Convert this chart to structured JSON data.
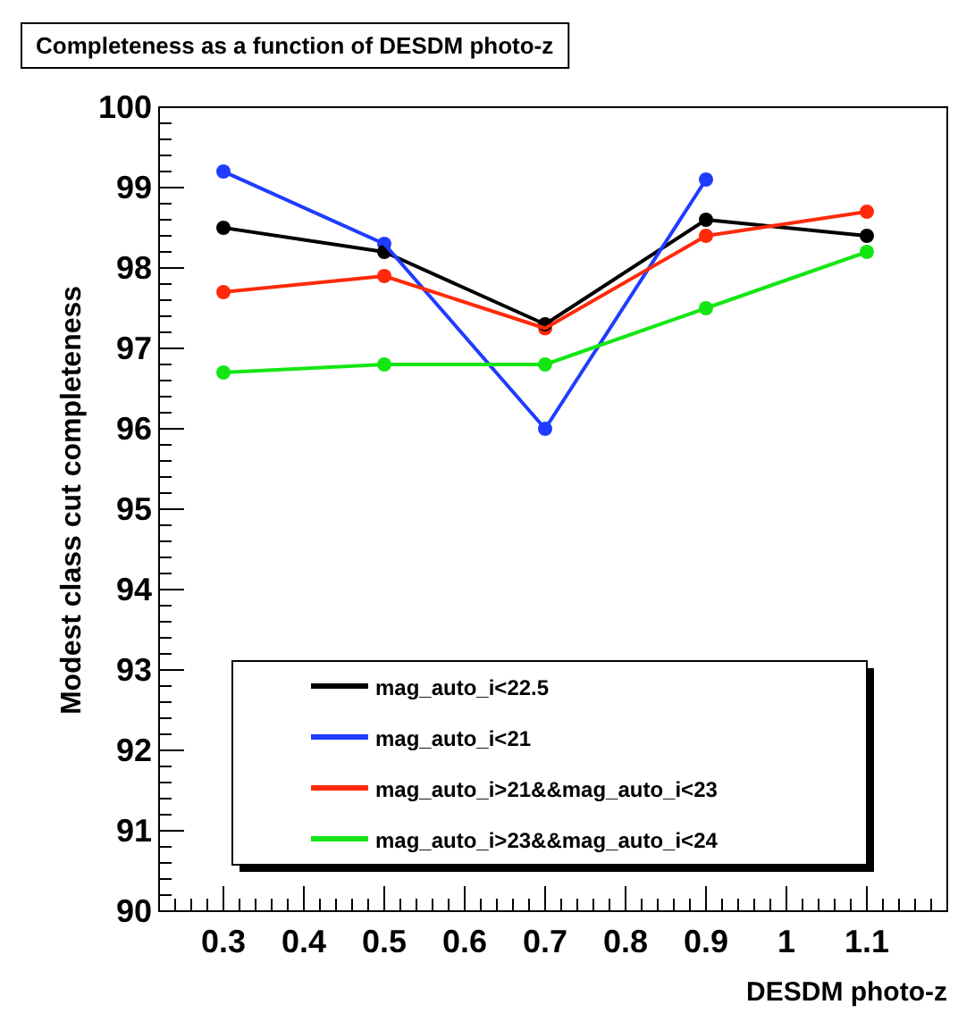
{
  "chart_data": {
    "type": "line",
    "title": "Completeness as a function of DESDM photo-z",
    "xlabel": "DESDM photo-z",
    "ylabel": "Modest class cut completeness",
    "x": [
      0.3,
      0.5,
      0.7,
      0.9,
      1.1
    ],
    "series": [
      {
        "name": "mag_auto_i<22.5",
        "color": "#000000",
        "values": [
          98.5,
          98.2,
          97.3,
          98.6,
          98.4
        ]
      },
      {
        "name": "mag_auto_i<21",
        "color": "#1f3cff",
        "values": [
          99.2,
          98.3,
          96.0,
          99.1,
          null
        ]
      },
      {
        "name": "mag_auto_i>21&&mag_auto_i<23",
        "color": "#ff2a0a",
        "values": [
          97.7,
          97.9,
          97.25,
          98.4,
          98.7
        ]
      },
      {
        "name": "mag_auto_i>23&&mag_auto_i<24",
        "color": "#14e614",
        "values": [
          96.7,
          96.8,
          96.8,
          97.5,
          98.2
        ]
      }
    ],
    "xlim": [
      0.22,
      1.2
    ],
    "xticks": [
      0.3,
      0.4,
      0.5,
      0.6,
      0.7,
      0.8,
      0.9,
      1,
      1.1
    ],
    "ylim": [
      90,
      100
    ],
    "yticks": [
      90,
      91,
      92,
      93,
      94,
      95,
      96,
      97,
      98,
      99,
      100
    ],
    "grid": false,
    "legend": "bottom left",
    "marker": "circle",
    "line_style": "solid"
  }
}
